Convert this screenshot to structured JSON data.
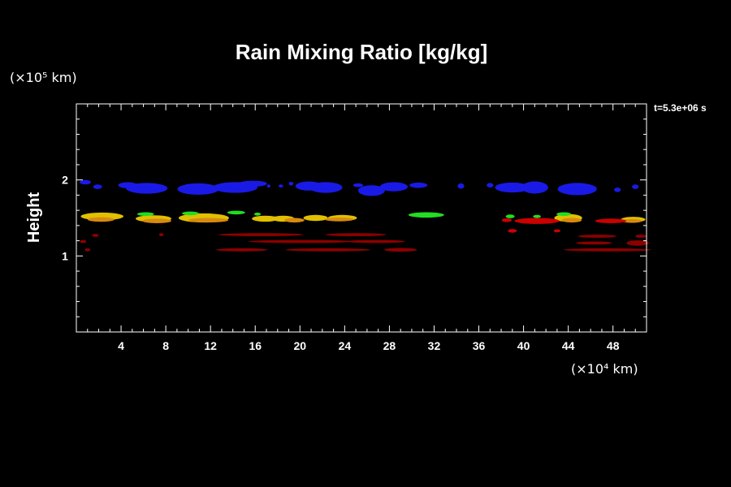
{
  "chart_data": {
    "type": "scatter",
    "title": "Rain Mixing Ratio [kg/kg]",
    "xlabel": "",
    "ylabel": "Height",
    "x_unit": "(×10⁴ km)",
    "y_unit": "(×10⁵ km)",
    "time_label": "t=5.3e+06 s",
    "xlim": [
      0,
      51
    ],
    "ylim": [
      0,
      3
    ],
    "xticks": [
      4,
      8,
      12,
      16,
      20,
      24,
      28,
      32,
      36,
      40,
      44,
      48
    ],
    "yticks": [
      1,
      2
    ],
    "grid": false,
    "colors": {
      "blue": "#1a1ae6",
      "yellow": "#e0c000",
      "green": "#22dd22",
      "orange": "#d88a10",
      "red": "#cc0000",
      "darkred": "#8b0000"
    },
    "series": [
      {
        "color_key": "blue",
        "points": [
          [
            0.8,
            1.97,
            1.0,
            0.06
          ],
          [
            1.9,
            1.91,
            0.8,
            0.06
          ],
          [
            4.6,
            1.93,
            1.7,
            0.08
          ],
          [
            6.3,
            1.89,
            3.7,
            0.14
          ],
          [
            10.9,
            1.88,
            3.7,
            0.15
          ],
          [
            14.2,
            1.9,
            4.0,
            0.14
          ],
          [
            15.8,
            1.95,
            2.5,
            0.08
          ],
          [
            17.2,
            1.92,
            0.3,
            0.04
          ],
          [
            18.3,
            1.92,
            0.4,
            0.04
          ],
          [
            19.2,
            1.95,
            0.4,
            0.05
          ],
          [
            20.8,
            1.92,
            2.4,
            0.12
          ],
          [
            22.3,
            1.9,
            3.0,
            0.14
          ],
          [
            25.2,
            1.93,
            0.9,
            0.05
          ],
          [
            26.4,
            1.86,
            2.4,
            0.14
          ],
          [
            28.4,
            1.91,
            2.5,
            0.12
          ],
          [
            30.6,
            1.93,
            1.6,
            0.07
          ],
          [
            34.4,
            1.92,
            0.6,
            0.07
          ],
          [
            37.0,
            1.93,
            0.6,
            0.06
          ],
          [
            39.0,
            1.9,
            3.1,
            0.13
          ],
          [
            41.0,
            1.9,
            2.4,
            0.16
          ],
          [
            44.8,
            1.88,
            3.5,
            0.16
          ],
          [
            48.4,
            1.87,
            0.6,
            0.06
          ],
          [
            50.0,
            1.91,
            0.6,
            0.06
          ]
        ]
      },
      {
        "color_key": "yellow",
        "points": [
          [
            2.3,
            1.52,
            3.8,
            0.1
          ],
          [
            6.9,
            1.49,
            3.2,
            0.09
          ],
          [
            11.4,
            1.5,
            4.5,
            0.12
          ],
          [
            16.9,
            1.49,
            2.4,
            0.08
          ],
          [
            18.5,
            1.49,
            2.0,
            0.08
          ],
          [
            21.4,
            1.5,
            2.2,
            0.08
          ],
          [
            23.8,
            1.5,
            2.6,
            0.08
          ],
          [
            44.0,
            1.5,
            2.5,
            0.1
          ],
          [
            49.8,
            1.48,
            2.2,
            0.07
          ]
        ]
      },
      {
        "color_key": "orange",
        "points": [
          [
            2.2,
            1.48,
            2.4,
            0.06
          ],
          [
            7.2,
            1.46,
            2.6,
            0.06
          ],
          [
            11.8,
            1.47,
            3.6,
            0.06
          ],
          [
            19.5,
            1.47,
            1.8,
            0.06
          ],
          [
            23.5,
            1.48,
            2.6,
            0.05
          ],
          [
            44.3,
            1.47,
            1.8,
            0.06
          ],
          [
            49.7,
            1.46,
            1.8,
            0.05
          ]
        ]
      },
      {
        "color_key": "green",
        "points": [
          [
            6.2,
            1.55,
            1.5,
            0.05
          ],
          [
            10.2,
            1.56,
            1.5,
            0.05
          ],
          [
            14.3,
            1.57,
            1.6,
            0.05
          ],
          [
            16.2,
            1.55,
            0.6,
            0.04
          ],
          [
            31.3,
            1.54,
            3.2,
            0.07
          ],
          [
            38.8,
            1.52,
            0.8,
            0.05
          ],
          [
            41.2,
            1.52,
            0.7,
            0.04
          ],
          [
            43.6,
            1.55,
            1.3,
            0.05
          ]
        ]
      },
      {
        "color_key": "red",
        "points": [
          [
            38.5,
            1.47,
            0.9,
            0.05
          ],
          [
            41.2,
            1.46,
            4.0,
            0.08
          ],
          [
            39.0,
            1.33,
            0.8,
            0.05
          ],
          [
            43.0,
            1.33,
            0.6,
            0.04
          ],
          [
            47.8,
            1.46,
            2.8,
            0.06
          ]
        ]
      },
      {
        "color_key": "darkred",
        "points": [
          [
            0.6,
            1.19,
            0.6,
            0.04
          ],
          [
            1.0,
            1.08,
            0.5,
            0.04
          ],
          [
            1.7,
            1.27,
            0.6,
            0.04
          ],
          [
            7.6,
            1.28,
            0.4,
            0.04
          ],
          [
            16.5,
            1.28,
            7.6,
            0.04
          ],
          [
            25.0,
            1.28,
            5.4,
            0.04
          ],
          [
            20.1,
            1.19,
            9.4,
            0.04
          ],
          [
            26.8,
            1.19,
            5.2,
            0.04
          ],
          [
            14.8,
            1.08,
            4.6,
            0.04
          ],
          [
            22.5,
            1.08,
            7.6,
            0.04
          ],
          [
            29.0,
            1.08,
            2.9,
            0.05
          ],
          [
            46.6,
            1.26,
            3.4,
            0.04
          ],
          [
            46.3,
            1.17,
            3.2,
            0.04
          ],
          [
            50.2,
            1.17,
            2.0,
            0.07
          ],
          [
            50.5,
            1.26,
            1.0,
            0.04
          ],
          [
            47.5,
            1.08,
            7.8,
            0.04
          ]
        ]
      }
    ]
  }
}
